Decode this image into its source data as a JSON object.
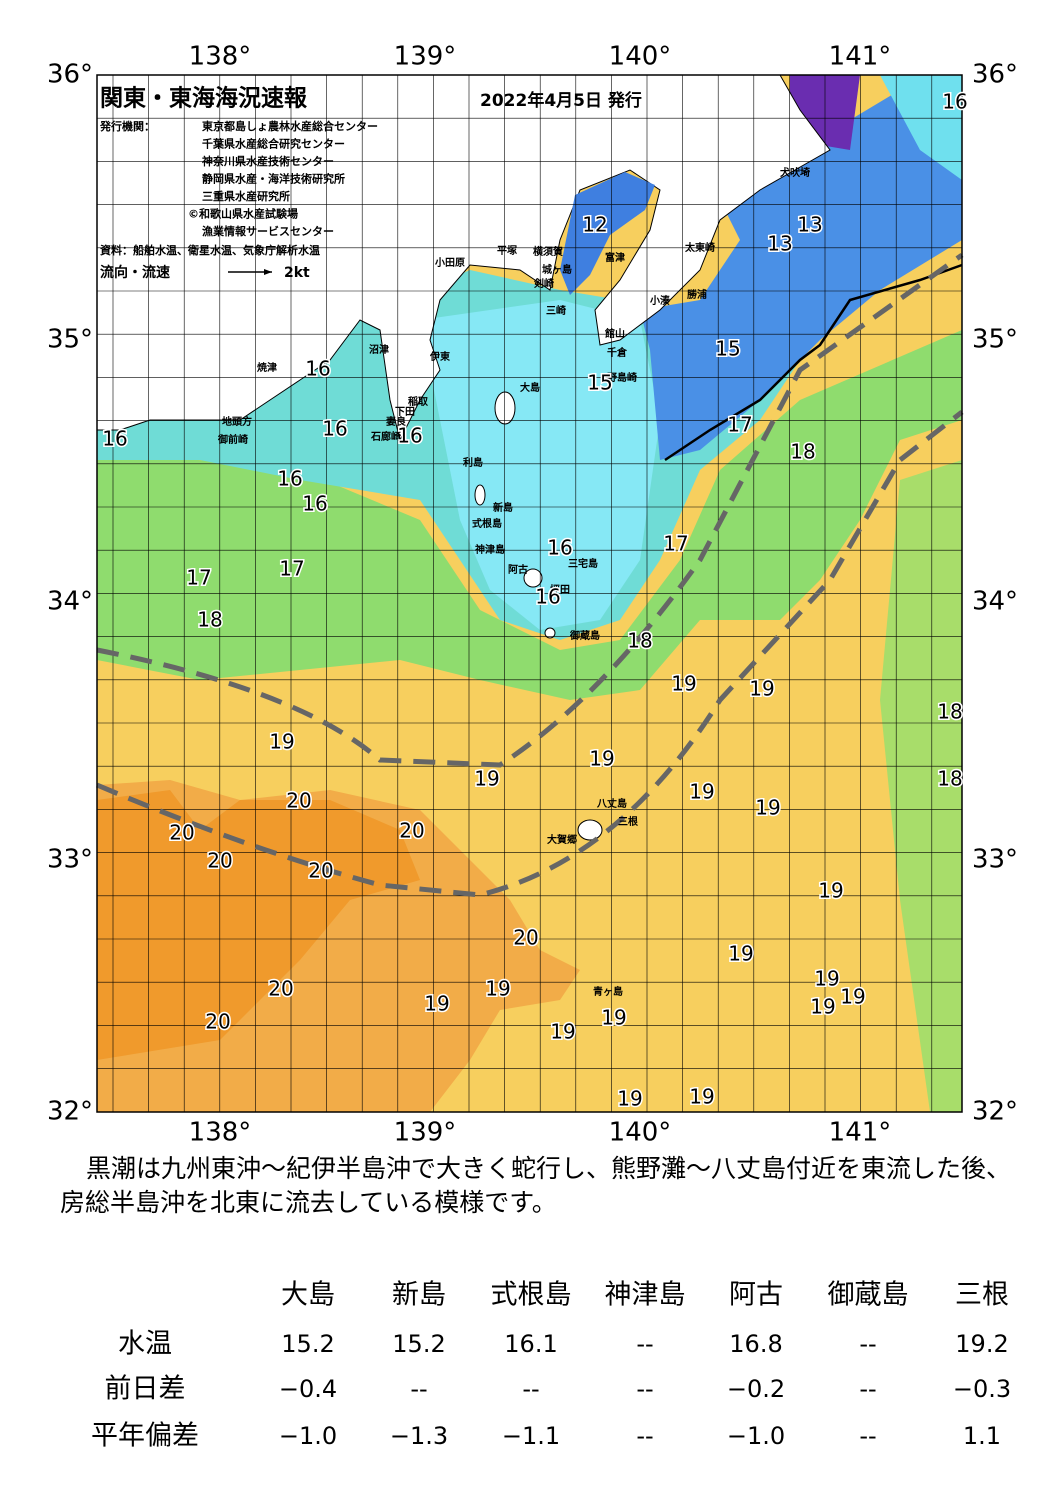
{
  "header": {
    "title": "関東・東海海況速報",
    "date": "2022年4月5日 発行",
    "publisher_label": "発行機関：",
    "publishers": [
      "東京都島しょ農林水産総合センター",
      "千葉県水産総合研究センター",
      "神奈川県水産技術センター",
      "静岡県水産・海洋技術研究所",
      "三重県水産研究所",
      "©和歌山県水産試験場",
      "漁業情報サービスセンター"
    ],
    "source": "資料：船舶水温、衛星水温、気象庁解析水温",
    "legend_label": "流向・流速",
    "legend_speed": "2kt"
  },
  "map": {
    "lon_labels": [
      "138°",
      "139°",
      "140°",
      "141°"
    ],
    "lat_labels": [
      "36°",
      "35°",
      "34°",
      "33°",
      "32°"
    ],
    "places": [
      "小田原",
      "平塚",
      "横須賀",
      "富津",
      "城ヶ島",
      "剣崎",
      "三崎",
      "館山",
      "千倉",
      "野島崎",
      "小湊",
      "勝浦",
      "太東崎",
      "犬吠埼",
      "大島",
      "利島",
      "新島",
      "式根島",
      "神津島",
      "三宅島",
      "阿古",
      "坪田",
      "御蔵島",
      "八丈島",
      "三根",
      "大賀郷",
      "青ヶ島",
      "伊東",
      "沼津",
      "焼津",
      "御前崎",
      "地頭方",
      "稲取",
      "下田",
      "石廊崎",
      "妻良"
    ],
    "isotherms": [
      "16",
      "12",
      "13",
      "13",
      "15",
      "15",
      "16",
      "16",
      "16",
      "16",
      "16",
      "16",
      "17",
      "18",
      "16",
      "17",
      "16",
      "17",
      "17",
      "18",
      "18",
      "19",
      "19",
      "18",
      "19",
      "19",
      "19",
      "18",
      "20",
      "19",
      "19",
      "20",
      "20",
      "20",
      "20",
      "19",
      "20",
      "19",
      "19",
      "19",
      "19",
      "20",
      "19",
      "19",
      "19",
      "19",
      "20",
      "19",
      "19"
    ]
  },
  "comment": "黒潮は九州東沖～紀伊半島沖で大きく蛇行し、熊野灘～八丈島付近を東流した後、房総半島沖を北東に流去している模様です。",
  "table": {
    "columns": [
      "大島",
      "新島",
      "式根島",
      "神津島",
      "阿古",
      "御蔵島",
      "三根"
    ],
    "rows": [
      {
        "label": "水温",
        "values": [
          "15.2",
          "15.2",
          "16.1",
          "--",
          "16.8",
          "--",
          "19.2"
        ]
      },
      {
        "label": "前日差",
        "values": [
          "−0.4",
          "--",
          "--",
          "--",
          "−0.2",
          "--",
          "−0.3"
        ]
      },
      {
        "label": "平年偏差",
        "values": [
          "−1.0",
          "−1.3",
          "−1.1",
          "--",
          "−1.0",
          "--",
          "1.1"
        ]
      }
    ]
  }
}
